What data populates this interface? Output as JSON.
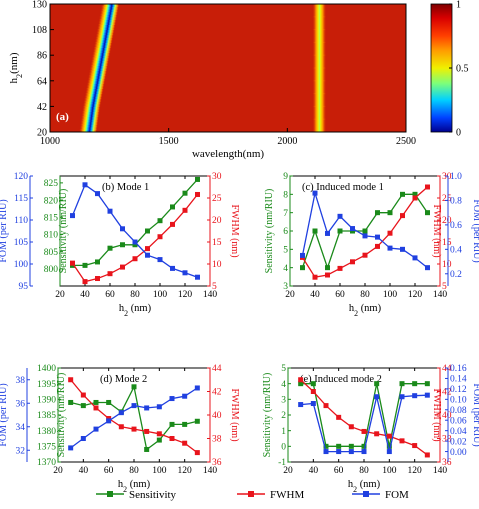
{
  "colors": {
    "sensitivity": "#1a8a1a",
    "fwhm": "#e8141c",
    "fom": "#2040e0",
    "axis": "#000000"
  },
  "legend": {
    "placement": "bottom-center",
    "items": [
      {
        "key": "sensitivity",
        "label": "Sensitivity"
      },
      {
        "key": "fwhm",
        "label": "FWHM"
      },
      {
        "key": "fom",
        "label": "FOM"
      }
    ]
  },
  "chart_data": [
    {
      "type": "heatmap",
      "panel_label": "(a)",
      "xlabel": "wavelength(nm)",
      "ylabel": "h2(nm)",
      "xlim": [
        1000,
        2500
      ],
      "ylim": [
        20,
        130
      ],
      "xticks": [
        "1000",
        "1500",
        "2000",
        "2500"
      ],
      "yticks": [
        "20",
        "42",
        "64",
        "86",
        "108",
        "130"
      ],
      "colorbar": {
        "min": 0,
        "max": 1,
        "ticks": [
          "1",
          "0.5",
          "0"
        ]
      },
      "features": [
        {
          "name": "dip-1",
          "points": [
            [
              1160,
              20
            ],
            [
              1175,
              42
            ],
            [
              1195,
              64
            ],
            [
              1215,
              86
            ],
            [
              1235,
              108
            ],
            [
              1255,
              130
            ]
          ],
          "min_value": 0
        },
        {
          "name": "dip-2",
          "points": [
            [
              2135,
              20
            ],
            [
              2135,
              130
            ]
          ],
          "min_value": 0.3
        }
      ]
    },
    {
      "type": "line",
      "panel_label": "(b) Mode 1",
      "xlabel": "h2 (nm)",
      "x": [
        30,
        40,
        50,
        60,
        70,
        80,
        90,
        100,
        110,
        120,
        130
      ],
      "xlim": [
        20,
        140
      ],
      "xticks": [
        "20",
        "40",
        "60",
        "80",
        "100",
        "120",
        "140"
      ],
      "left_outer": {
        "label": "FOM (per RIU)",
        "ylim": [
          95,
          120
        ],
        "ticks": [
          "95",
          "100",
          "105",
          "110",
          "115",
          "120"
        ]
      },
      "left_inner": {
        "label": "Sensitivity (nm/RIU)",
        "ylim": [
          795,
          827
        ],
        "ticks": [
          "800",
          "805",
          "810",
          "815",
          "820",
          "825"
        ]
      },
      "right": {
        "label": "FWHM (nm)",
        "ylim": [
          5,
          30
        ],
        "ticks": [
          "5",
          "10",
          "15",
          "20",
          "25",
          "30"
        ]
      },
      "series": [
        {
          "key": "sensitivity",
          "axis": "left_inner",
          "values": [
            801,
            801,
            802,
            806,
            807,
            807,
            811,
            814,
            818,
            822,
            826
          ]
        },
        {
          "key": "fwhm",
          "axis": "right",
          "values": [
            10.2,
            6.0,
            6.7,
            7.8,
            9.3,
            11.2,
            13.5,
            16.2,
            19.0,
            22.2,
            25.8
          ]
        },
        {
          "key": "fom",
          "axis": "left_outer",
          "values": [
            111,
            118,
            116,
            112,
            108,
            105,
            102,
            101,
            99,
            98,
            97
          ]
        }
      ]
    },
    {
      "type": "line",
      "panel_label": "(c) Induced mode 1",
      "xlabel": "h2 (nm)",
      "x": [
        30,
        40,
        50,
        60,
        70,
        80,
        90,
        100,
        110,
        120,
        130
      ],
      "xlim": [
        20,
        140
      ],
      "xticks": [
        "20",
        "40",
        "60",
        "80",
        "100",
        "120",
        "140"
      ],
      "left": {
        "label": "Sensitivity (nm/RIU)",
        "ylim": [
          3,
          9
        ],
        "ticks": [
          "3",
          "4",
          "5",
          "6",
          "7",
          "8",
          "9"
        ]
      },
      "right_inner": {
        "label": "FWHM (nm)",
        "ylim": [
          5,
          30
        ],
        "ticks": [
          "5",
          "10",
          "15",
          "20",
          "25",
          "30"
        ]
      },
      "right_outer": {
        "label": "FOM (per RIU)",
        "ylim": [
          0.1,
          1.0
        ],
        "ticks": [
          "0.2",
          "0.4",
          "0.6",
          "0.8",
          "1.0"
        ]
      },
      "series": [
        {
          "key": "sensitivity",
          "axis": "left",
          "values": [
            4,
            6,
            4,
            6,
            6,
            6,
            7,
            7,
            8,
            8,
            7
          ]
        },
        {
          "key": "fwhm",
          "axis": "right_inner",
          "values": [
            11.5,
            7.0,
            7.5,
            9.0,
            10.5,
            12.0,
            14.0,
            17.0,
            21.0,
            25.0,
            27.5
          ]
        },
        {
          "key": "fom",
          "axis": "right_outer",
          "values": [
            0.35,
            0.86,
            0.53,
            0.67,
            0.57,
            0.51,
            0.5,
            0.41,
            0.4,
            0.33,
            0.25
          ]
        }
      ]
    },
    {
      "type": "line",
      "panel_label": "(d) Mode 2",
      "xlabel": "h2 (nm)",
      "x": [
        30,
        40,
        50,
        60,
        70,
        80,
        90,
        100,
        110,
        120,
        130
      ],
      "xlim": [
        20,
        140
      ],
      "xticks": [
        "20",
        "40",
        "60",
        "80",
        "100",
        "120",
        "140"
      ],
      "left_outer": {
        "label": "FOM (per RIU)",
        "ylim": [
          31,
          39
        ],
        "ticks": [
          "32",
          "34",
          "36",
          "38"
        ]
      },
      "left_inner": {
        "label": "Sensitivity (nm/RIU)",
        "ylim": [
          1370,
          1400
        ],
        "ticks": [
          "1370",
          "1375",
          "1380",
          "1385",
          "1390",
          "1395",
          "1400"
        ]
      },
      "right": {
        "label": "FWHM (nm)",
        "ylim": [
          36,
          44
        ],
        "ticks": [
          "36",
          "38",
          "40",
          "42",
          "44"
        ]
      },
      "series": [
        {
          "key": "sensitivity",
          "axis": "left_inner",
          "values": [
            1389,
            1388,
            1389,
            1389,
            1386,
            1394,
            1374,
            1377,
            1382,
            1382,
            1383
          ]
        },
        {
          "key": "fwhm",
          "axis": "right",
          "values": [
            43.0,
            41.7,
            40.6,
            39.7,
            39.0,
            38.8,
            38.6,
            38.4,
            38.0,
            37.6,
            36.8
          ]
        },
        {
          "key": "fom",
          "axis": "left_outer",
          "values": [
            32.2,
            33.0,
            33.8,
            34.5,
            35.2,
            35.8,
            35.6,
            35.7,
            36.4,
            36.6,
            37.3
          ]
        }
      ]
    },
    {
      "type": "line",
      "panel_label": "(e) Induced mode 2",
      "xlabel": "h2 (nm)",
      "x": [
        30,
        40,
        50,
        60,
        70,
        80,
        90,
        100,
        110,
        120,
        130
      ],
      "xlim": [
        20,
        140
      ],
      "xticks": [
        "20",
        "40",
        "60",
        "80",
        "100",
        "120",
        "140"
      ],
      "left": {
        "label": "Sensitivity (nm/RIU)",
        "ylim": [
          -1,
          5
        ],
        "ticks": [
          "-1",
          "0",
          "1",
          "2",
          "3",
          "4",
          "5"
        ]
      },
      "right_inner": {
        "label": "FWHM (nm)",
        "ylim": [
          36,
          44
        ],
        "ticks": [
          "36",
          "38",
          "40",
          "42",
          "44"
        ]
      },
      "right_outer": {
        "label": "FOM (per RIU)",
        "ylim": [
          -0.02,
          0.16
        ],
        "ticks": [
          "0.00",
          "0.02",
          "0.04",
          "0.06",
          "0.08",
          "0.10",
          "0.12",
          "0.14",
          "0.16"
        ]
      },
      "series": [
        {
          "key": "sensitivity",
          "axis": "left",
          "values": [
            4,
            4,
            0,
            0,
            0,
            0,
            4,
            0,
            4,
            4,
            4
          ]
        },
        {
          "key": "fwhm",
          "axis": "right_inner",
          "values": [
            43.0,
            42.0,
            40.8,
            39.8,
            39.0,
            38.6,
            38.4,
            38.2,
            37.8,
            37.4,
            36.6
          ]
        },
        {
          "key": "fom",
          "axis": "right_outer",
          "values": [
            0.09,
            0.092,
            0.0,
            0.0,
            0.0,
            0.0,
            0.105,
            0.0,
            0.105,
            0.107,
            0.108
          ]
        }
      ]
    }
  ]
}
